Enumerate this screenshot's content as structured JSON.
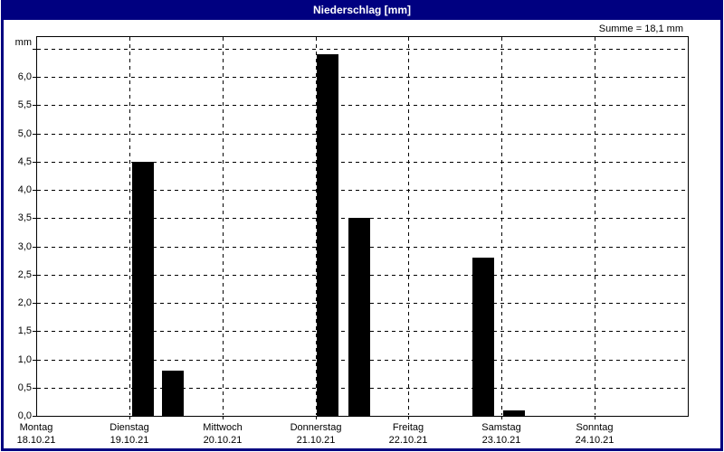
{
  "window": {
    "title": "Niederschlag [mm]",
    "summary_label": "Summe = 18,1 mm"
  },
  "colors": {
    "frame": "#000080",
    "titlebar_text": "#ffffff",
    "background": "#ffffff",
    "bar_fill": "#000000",
    "grid_line": "#000000"
  },
  "chart_data": {
    "type": "bar",
    "title": "Niederschlag [mm]",
    "ylabel": "mm",
    "xlabel": "",
    "ylim": [
      0,
      6.72
    ],
    "grid": true,
    "grid_style": "dashed",
    "sum_mm": 18.1,
    "y_ticks": [
      {
        "value": 0.0,
        "label": "0,0"
      },
      {
        "value": 0.5,
        "label": "0,5"
      },
      {
        "value": 1.0,
        "label": "1,0"
      },
      {
        "value": 1.5,
        "label": "1,5"
      },
      {
        "value": 2.0,
        "label": "2,0"
      },
      {
        "value": 2.5,
        "label": "2,5"
      },
      {
        "value": 3.0,
        "label": "3,0"
      },
      {
        "value": 3.5,
        "label": "3,5"
      },
      {
        "value": 4.0,
        "label": "4,0"
      },
      {
        "value": 4.5,
        "label": "4,5"
      },
      {
        "value": 5.0,
        "label": "5,0"
      },
      {
        "value": 5.5,
        "label": "5,5"
      },
      {
        "value": 6.0,
        "label": "6,0"
      }
    ],
    "y_extra_gridlines": [
      6.5
    ],
    "x_categories": [
      {
        "day": "Montag",
        "date": "18.10.21"
      },
      {
        "day": "Dienstag",
        "date": "19.10.21"
      },
      {
        "day": "Mittwoch",
        "date": "20.10.21"
      },
      {
        "day": "Donnerstag",
        "date": "21.10.21"
      },
      {
        "day": "Freitag",
        "date": "22.10.21"
      },
      {
        "day": "Samstag",
        "date": "23.10.21"
      },
      {
        "day": "Sonntag",
        "date": "24.10.21"
      }
    ],
    "bars": [
      {
        "day": "Dienstag",
        "value": 4.5,
        "x_frac": 0.1472
      },
      {
        "day": "Dienstag",
        "value": 0.8,
        "x_frac": 0.1931
      },
      {
        "day": "Donnerstag",
        "value": 6.4,
        "x_frac": 0.4306
      },
      {
        "day": "Donnerstag",
        "value": 3.5,
        "x_frac": 0.4792
      },
      {
        "day": "Samstag",
        "value": 2.8,
        "x_frac": 0.6694
      },
      {
        "day": "Samstag",
        "value": 0.1,
        "x_frac": 0.7167
      }
    ],
    "bar_width_frac": 0.0333
  }
}
